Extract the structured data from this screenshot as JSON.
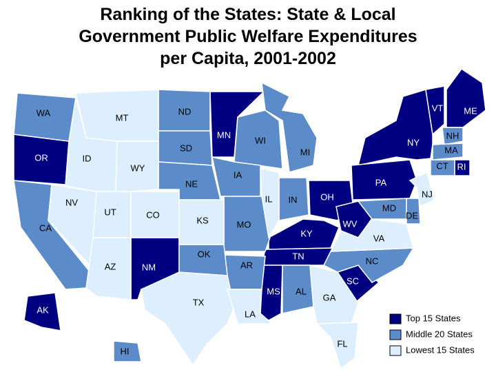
{
  "title_lines": [
    "Ranking of the States: State & Local",
    "Government Public Welfare Expenditures",
    "per Capita, 2001-2002"
  ],
  "groups": [
    {
      "label": "Top 15 States",
      "color": "#000080",
      "states": [
        "MN",
        "OR",
        "NY",
        "VT",
        "ME",
        "PA",
        "OH",
        "KY",
        "WV",
        "TN",
        "NM",
        "MS",
        "SC",
        "RI",
        "AK"
      ]
    },
    {
      "label": "Middle 20 States",
      "color": "#5b8bc8",
      "states": [
        "WA",
        "ND",
        "SD",
        "WI",
        "MI",
        "IA",
        "NE",
        "IN",
        "CA",
        "MO",
        "AR",
        "OK",
        "AL",
        "NC",
        "MD",
        "DE",
        "NH",
        "MA",
        "CT",
        "HI"
      ]
    },
    {
      "label": "Lowest 15 States",
      "color": "#ddeeff",
      "states": [
        "MT",
        "ID",
        "WY",
        "NV",
        "UT",
        "CO",
        "KS",
        "IL",
        "AZ",
        "TX",
        "LA",
        "GA",
        "FL",
        "VA",
        "NJ"
      ]
    }
  ]
}
